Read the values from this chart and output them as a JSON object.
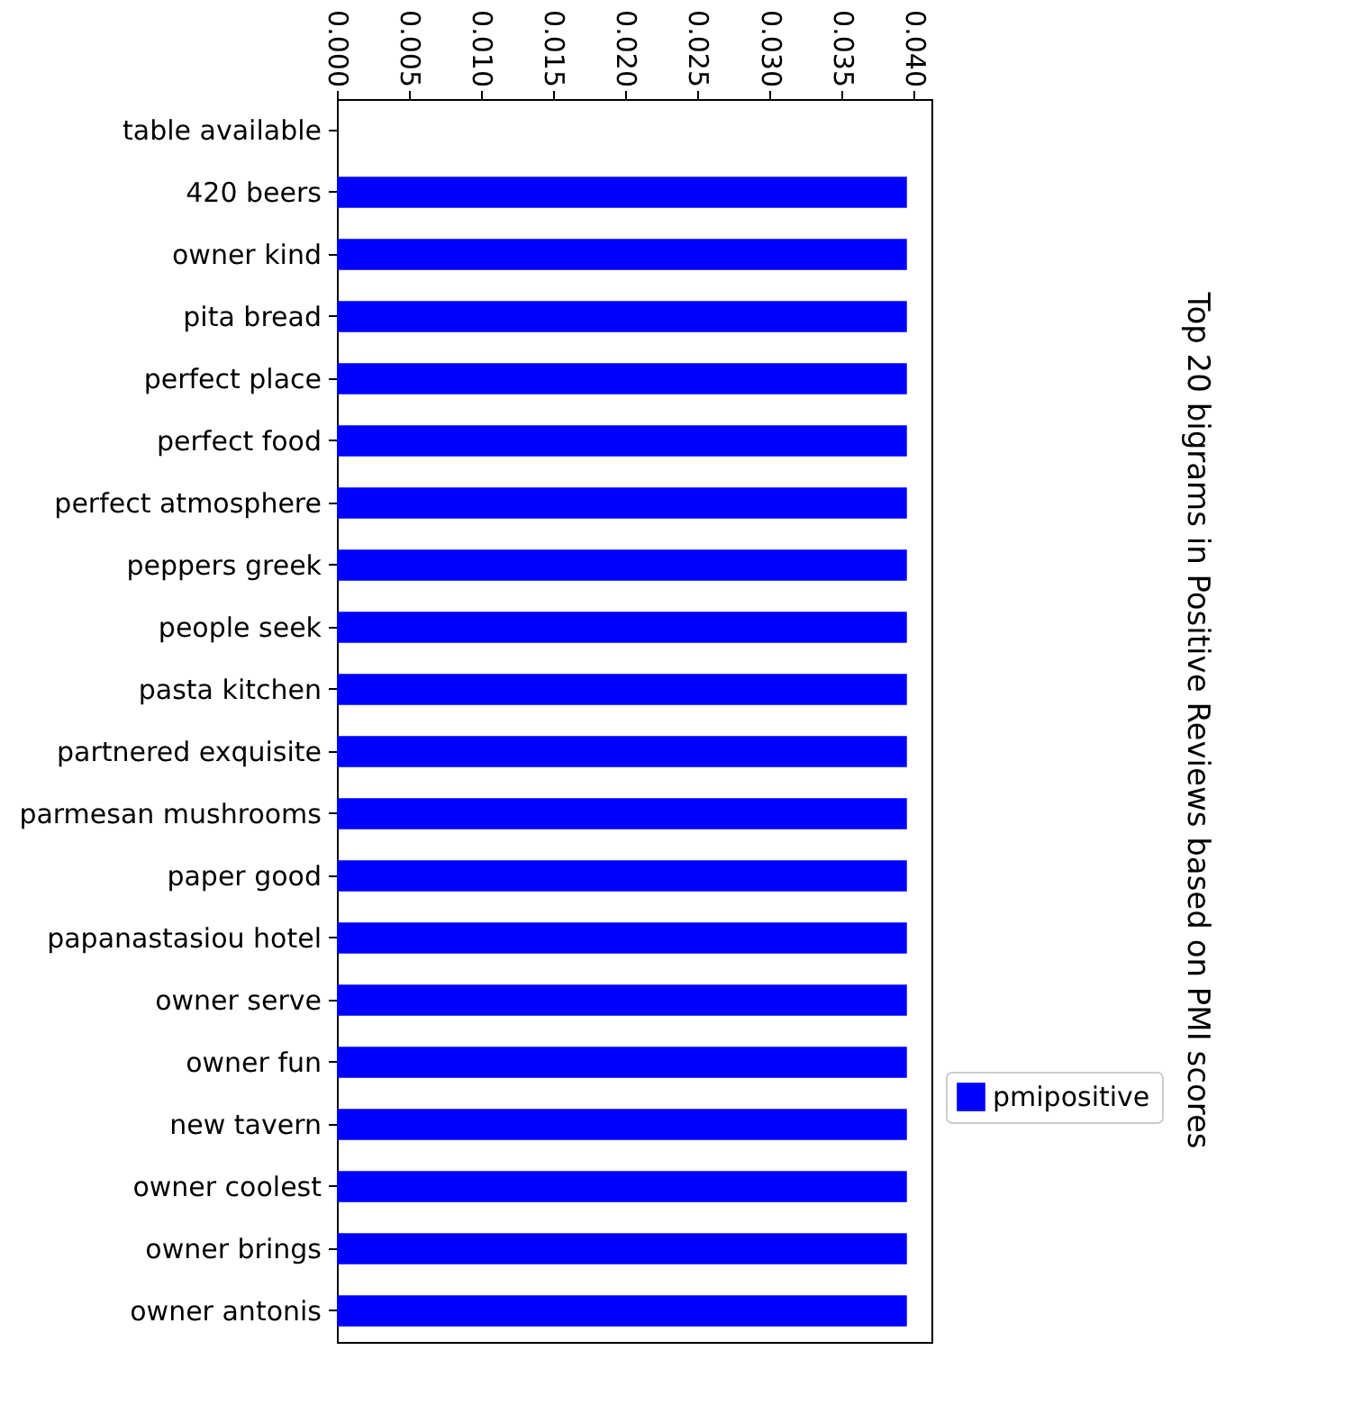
{
  "chart_data": {
    "type": "bar",
    "orientation": "horizontal",
    "title": "Top 20 bigrams in Positive Reviews based on PMI scores",
    "categories": [
      "table available",
      "420 beers",
      "owner kind",
      "pita bread",
      "perfect place",
      "perfect food",
      "perfect atmosphere",
      "peppers greek",
      "people seek",
      "pasta kitchen",
      "partnered exquisite",
      "parmesan mushrooms",
      "paper good",
      "papanastasiou hotel",
      "owner serve",
      "owner fun",
      "new tavern",
      "owner coolest",
      "owner brings",
      "owner antonis"
    ],
    "series": [
      {
        "name": "pmipositive",
        "color": "#0000ff",
        "values": [
          0,
          0.0395,
          0.0395,
          0.0395,
          0.0395,
          0.0395,
          0.0395,
          0.0395,
          0.0395,
          0.0395,
          0.0395,
          0.0395,
          0.0395,
          0.0395,
          0.0395,
          0.0395,
          0.0395,
          0.0395,
          0.0395,
          0.0395
        ]
      }
    ],
    "xlim": [
      0,
      0.0412
    ],
    "xticks": [
      {
        "value": 0,
        "label": "0.000"
      },
      {
        "value": 0.005,
        "label": "0.005"
      },
      {
        "value": 0.01,
        "label": "0.010"
      },
      {
        "value": 0.015,
        "label": "0.015"
      },
      {
        "value": 0.02,
        "label": "0.020"
      },
      {
        "value": 0.025,
        "label": "0.025"
      },
      {
        "value": 0.03,
        "label": "0.030"
      },
      {
        "value": 0.035,
        "label": "0.035"
      },
      {
        "value": 0.04,
        "label": "0.040"
      }
    ],
    "legend": "bottom right",
    "grid": false
  }
}
